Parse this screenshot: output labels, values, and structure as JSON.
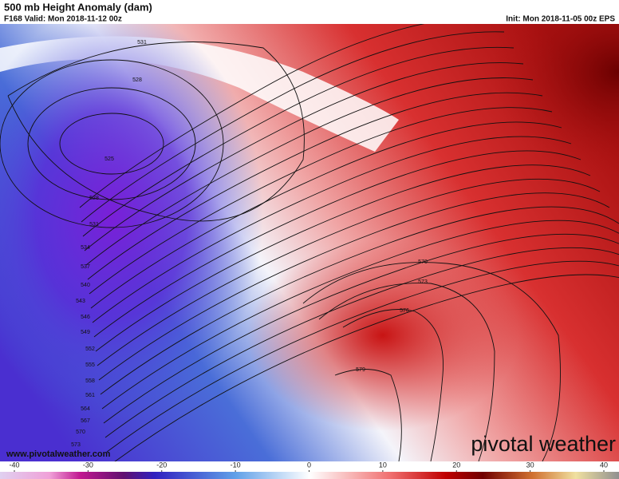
{
  "header": {
    "title": "500 mb Height Anomaly (dam)",
    "valid": "F168 Valid: Mon 2018-11-12 00z",
    "init": "Init: Mon 2018-11-05 00z EPS"
  },
  "contours": [
    "531",
    "528",
    "525",
    "528",
    "531",
    "534",
    "537",
    "540",
    "543",
    "546",
    "549",
    "552",
    "555",
    "558",
    "561",
    "564",
    "567",
    "570",
    "573",
    "570",
    "573",
    "576",
    "579"
  ],
  "footer": {
    "url": "www.pivotalweather.com",
    "brand": "pivotal weather"
  },
  "colorbar": {
    "lim": [
      -40,
      40
    ],
    "ticks": [
      -40,
      -30,
      -20,
      -10,
      0,
      10,
      20,
      30,
      40
    ]
  }
}
